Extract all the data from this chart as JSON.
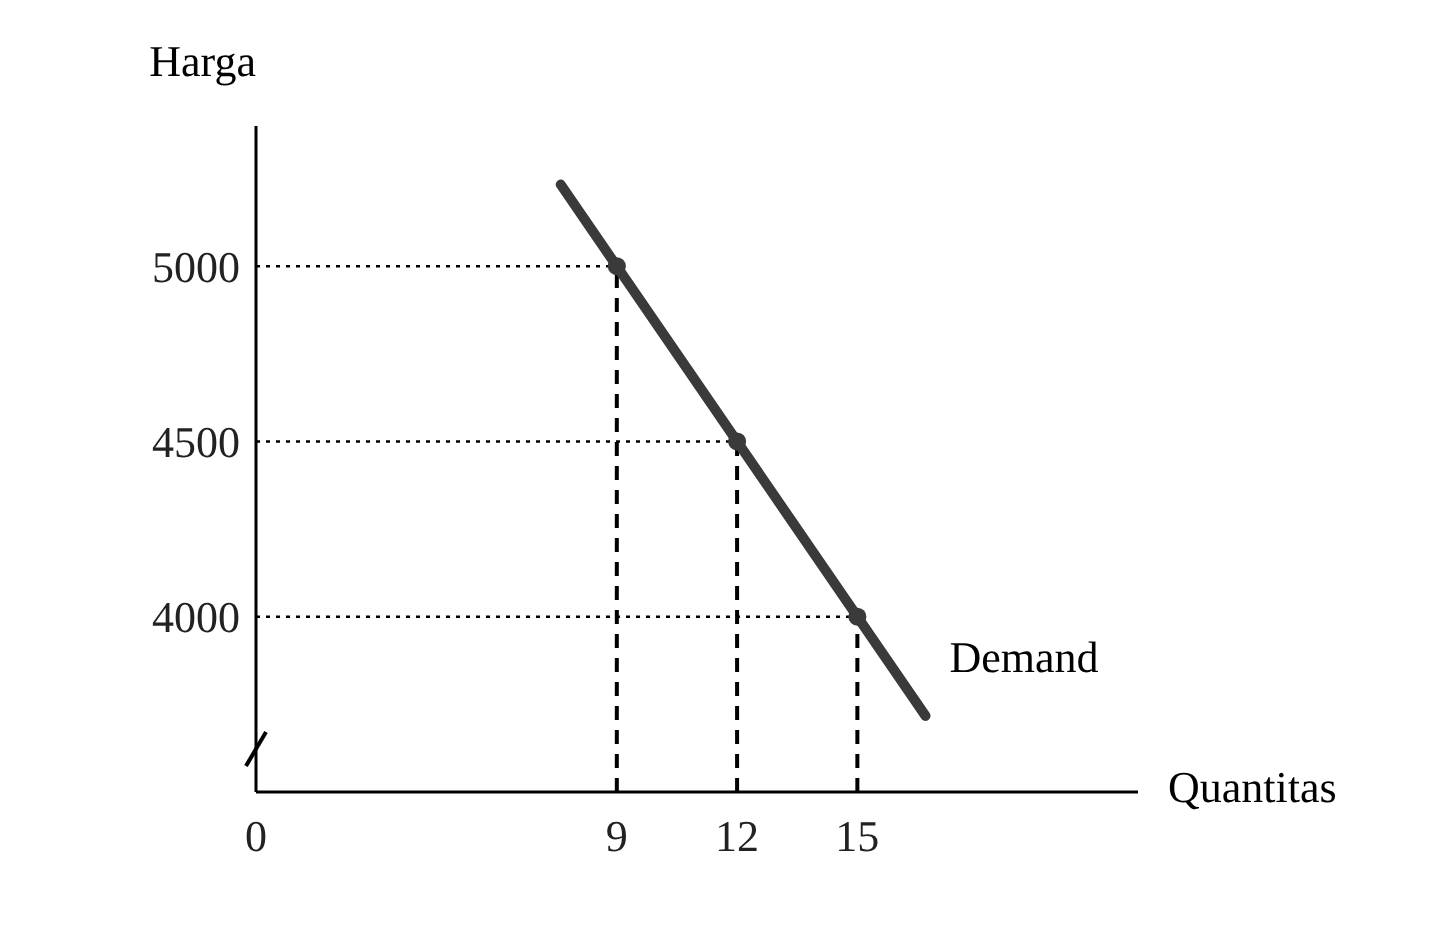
{
  "chart_data": {
    "type": "line",
    "xlabel": "Quantitas",
    "ylabel": "Harga",
    "xlim": [
      0,
      22
    ],
    "xticks": [
      0,
      9,
      12,
      15
    ],
    "ylim": [
      3500,
      5400
    ],
    "yticks": [
      4000,
      4500,
      5000
    ],
    "grid": false,
    "legend": false,
    "series": [
      {
        "name": "Demand",
        "color": "#3a3a3a",
        "x": [
          7.6,
          16.7
        ],
        "values": [
          5233,
          3717
        ],
        "marker": "none"
      },
      {
        "type": "scatter",
        "color": "#3a3a3a",
        "x": [
          9,
          12,
          15
        ],
        "values": [
          5000,
          4500,
          4000
        ],
        "marker": "circle"
      }
    ],
    "ref_lines": [
      {
        "axis": "x",
        "value": 9,
        "line_style": "dashed",
        "color": "#000000"
      },
      {
        "axis": "x",
        "value": 12,
        "line_style": "dashed",
        "color": "#000000"
      },
      {
        "axis": "x",
        "value": 15,
        "line_style": "dashed",
        "color": "#000000"
      },
      {
        "axis": "y",
        "value": 5000,
        "line_style": "dotted",
        "color": "#000000"
      },
      {
        "axis": "y",
        "value": 4500,
        "line_style": "dotted",
        "color": "#000000"
      },
      {
        "axis": "y",
        "value": 4000,
        "line_style": "dotted",
        "color": "#000000"
      }
    ]
  }
}
